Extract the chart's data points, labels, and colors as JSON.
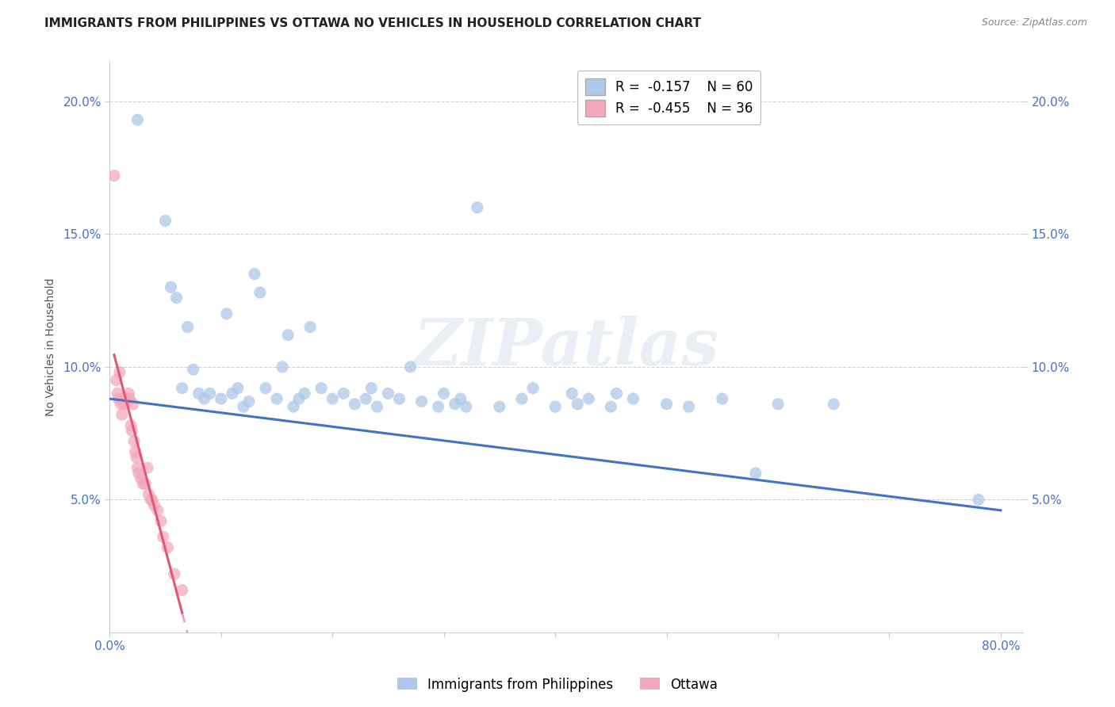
{
  "title": "IMMIGRANTS FROM PHILIPPINES VS OTTAWA NO VEHICLES IN HOUSEHOLD CORRELATION CHART",
  "source": "Source: ZipAtlas.com",
  "ylabel": "No Vehicles in Household",
  "watermark": "ZIPatlas",
  "xlim": [
    0.0,
    0.82
  ],
  "ylim": [
    0.0,
    0.215
  ],
  "xticks": [
    0.0,
    0.1,
    0.2,
    0.3,
    0.4,
    0.5,
    0.6,
    0.7,
    0.8
  ],
  "xticklabels": [
    "0.0%",
    "",
    "",
    "",
    "",
    "",
    "",
    "",
    "80.0%"
  ],
  "yticks_left": [
    0.05,
    0.1,
    0.15,
    0.2
  ],
  "yticklabels_left": [
    "5.0%",
    "10.0%",
    "15.0%",
    "20.0%"
  ],
  "yticks_right": [
    0.05,
    0.1,
    0.15,
    0.2
  ],
  "yticklabels_right": [
    "5.0%",
    "10.0%",
    "15.0%",
    "20.0%"
  ],
  "blue_R": -0.157,
  "blue_N": 60,
  "pink_R": -0.455,
  "pink_N": 36,
  "blue_color": "#adc8e8",
  "pink_color": "#f5a8bc",
  "blue_line_color": "#4472C4",
  "pink_line_color": "#E05878",
  "legend_blue_label": "Immigrants from Philippines",
  "legend_pink_label": "Ottawa",
  "blue_scatter_x": [
    0.025,
    0.05,
    0.055,
    0.06,
    0.065,
    0.07,
    0.075,
    0.08,
    0.085,
    0.09,
    0.1,
    0.105,
    0.11,
    0.115,
    0.12,
    0.125,
    0.13,
    0.135,
    0.14,
    0.15,
    0.155,
    0.16,
    0.165,
    0.17,
    0.175,
    0.18,
    0.19,
    0.2,
    0.21,
    0.22,
    0.23,
    0.235,
    0.24,
    0.25,
    0.26,
    0.27,
    0.28,
    0.295,
    0.3,
    0.31,
    0.315,
    0.32,
    0.33,
    0.35,
    0.37,
    0.38,
    0.4,
    0.415,
    0.42,
    0.43,
    0.45,
    0.455,
    0.47,
    0.5,
    0.52,
    0.55,
    0.58,
    0.6,
    0.65,
    0.78
  ],
  "blue_scatter_y": [
    0.193,
    0.155,
    0.13,
    0.126,
    0.092,
    0.115,
    0.099,
    0.09,
    0.088,
    0.09,
    0.088,
    0.12,
    0.09,
    0.092,
    0.085,
    0.087,
    0.135,
    0.128,
    0.092,
    0.088,
    0.1,
    0.112,
    0.085,
    0.088,
    0.09,
    0.115,
    0.092,
    0.088,
    0.09,
    0.086,
    0.088,
    0.092,
    0.085,
    0.09,
    0.088,
    0.1,
    0.087,
    0.085,
    0.09,
    0.086,
    0.088,
    0.085,
    0.16,
    0.085,
    0.088,
    0.092,
    0.085,
    0.09,
    0.086,
    0.088,
    0.085,
    0.09,
    0.088,
    0.086,
    0.085,
    0.088,
    0.06,
    0.086,
    0.086,
    0.05
  ],
  "pink_scatter_x": [
    0.004,
    0.006,
    0.007,
    0.008,
    0.009,
    0.01,
    0.011,
    0.012,
    0.013,
    0.014,
    0.015,
    0.016,
    0.017,
    0.018,
    0.019,
    0.02,
    0.021,
    0.022,
    0.023,
    0.024,
    0.025,
    0.026,
    0.028,
    0.03,
    0.032,
    0.034,
    0.035,
    0.037,
    0.038,
    0.04,
    0.043,
    0.046,
    0.048,
    0.052,
    0.058,
    0.065
  ],
  "pink_scatter_y": [
    0.172,
    0.095,
    0.09,
    0.088,
    0.098,
    0.086,
    0.082,
    0.088,
    0.086,
    0.088,
    0.086,
    0.088,
    0.09,
    0.088,
    0.078,
    0.076,
    0.086,
    0.072,
    0.068,
    0.066,
    0.062,
    0.06,
    0.058,
    0.056,
    0.056,
    0.062,
    0.052,
    0.05,
    0.05,
    0.048,
    0.046,
    0.042,
    0.036,
    0.032,
    0.022,
    0.016
  ],
  "blue_line_x0": 0.0,
  "blue_line_y0": 0.088,
  "blue_line_x1": 0.8,
  "blue_line_y1": 0.046,
  "pink_line_x0": 0.004,
  "pink_line_y0": 0.088,
  "pink_line_x1": 0.065,
  "pink_line_y1": 0.008,
  "background_color": "#ffffff",
  "grid_color": "#cccccc",
  "title_color": "#222222",
  "tick_color": "#4472C4",
  "source_color": "#888888"
}
